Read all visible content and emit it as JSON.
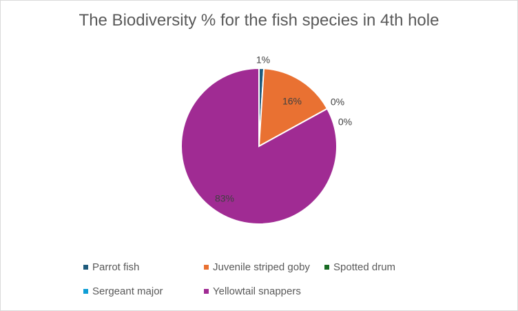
{
  "chart_data": {
    "type": "pie",
    "title": "The Biodiversity % for the fish species in 4th hole",
    "legend_position": "bottom",
    "slices": [
      {
        "name": "Parrot fish",
        "value": 1,
        "label": "1%",
        "color": "#1f5b7c"
      },
      {
        "name": "Juvenile striped goby",
        "value": 16,
        "label": "16%",
        "color": "#e97132"
      },
      {
        "name": "Spotted drum",
        "value": 0,
        "label": "0%",
        "color": "#196b24"
      },
      {
        "name": "Sergeant major",
        "value": 0,
        "label": "0%",
        "color": "#0f9ed5"
      },
      {
        "name": "Yellowtail snappers",
        "value": 83,
        "label": "83%",
        "color": "#a02b93"
      }
    ]
  }
}
